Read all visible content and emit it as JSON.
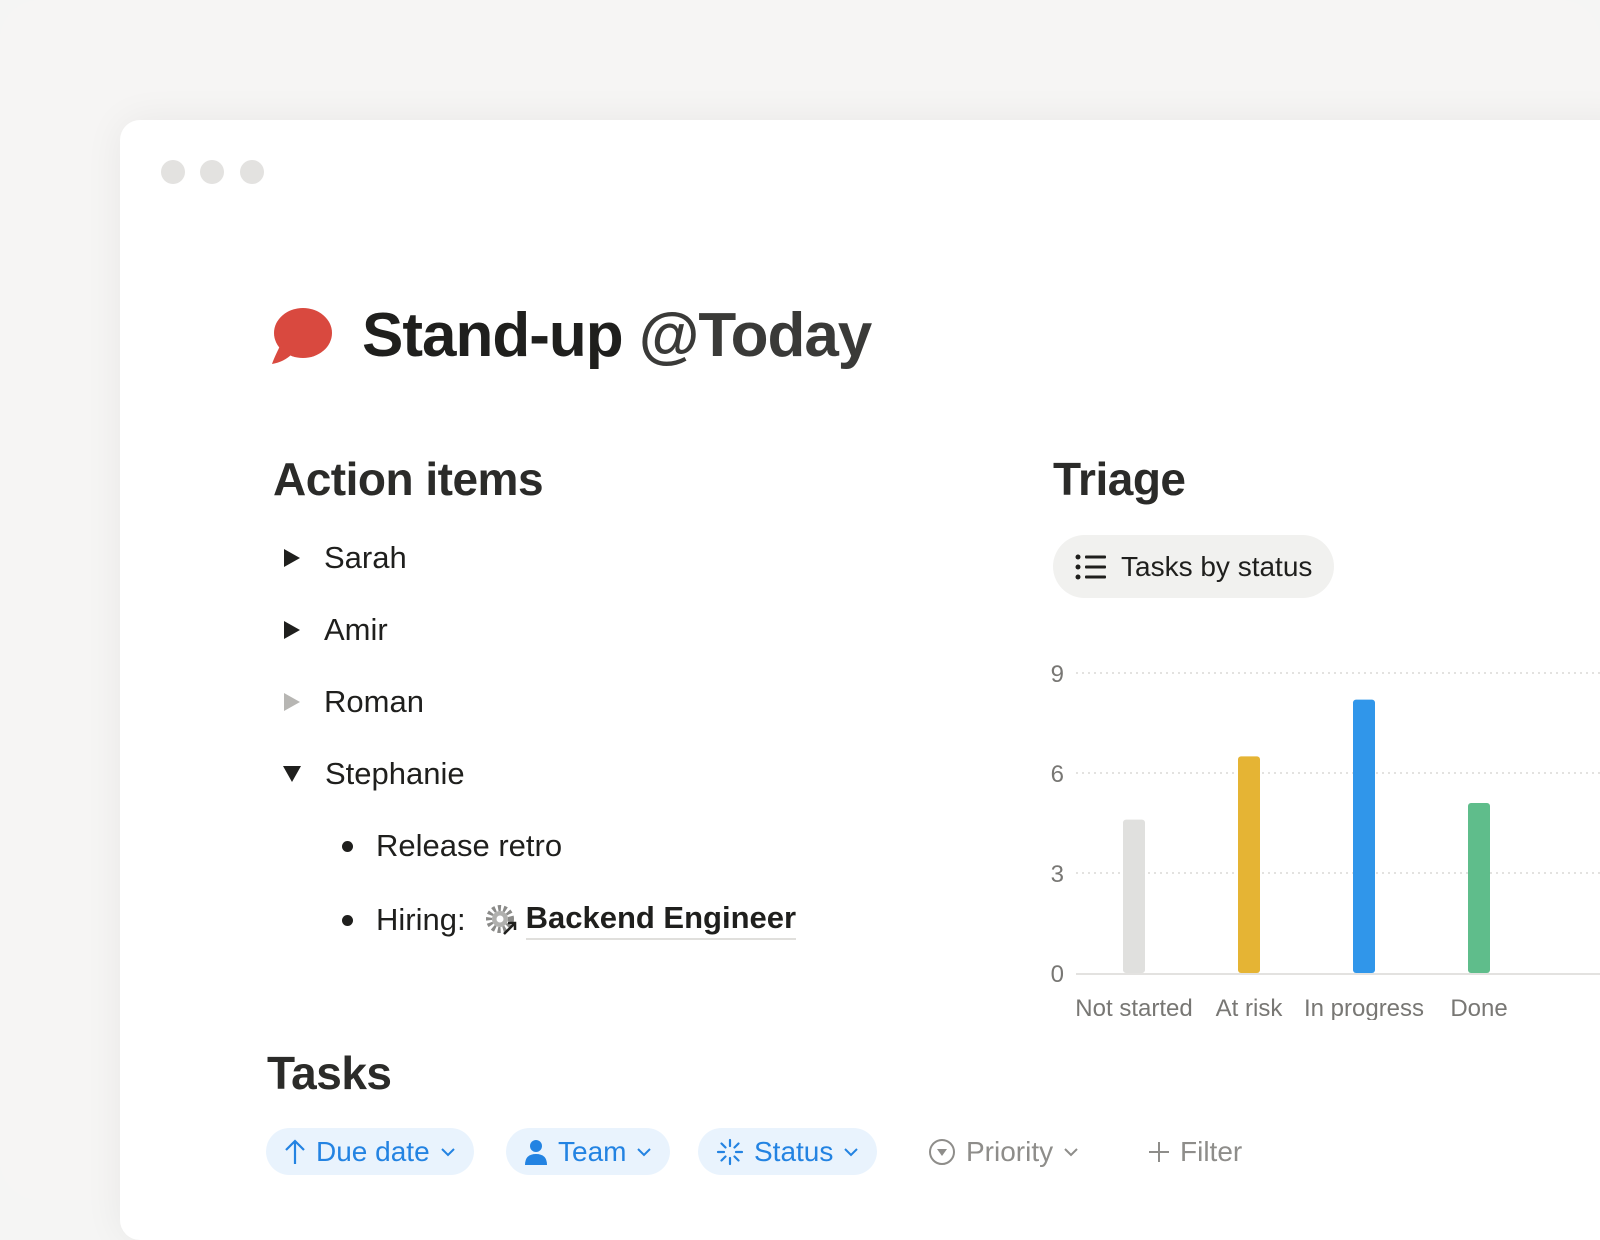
{
  "page": {
    "title": "Stand-up",
    "mention": "@Today",
    "icon": "speech-bubble-icon"
  },
  "action_items": {
    "heading": "Action items",
    "people": [
      {
        "name": "Sarah",
        "state": "collapsed"
      },
      {
        "name": "Amir",
        "state": "collapsed"
      },
      {
        "name": "Roman",
        "state": "collapsed-empty"
      },
      {
        "name": "Stephanie",
        "state": "expanded"
      }
    ],
    "stephanie_items": {
      "first": "Release retro",
      "second_label": "Hiring:",
      "second_link": "Backend Engineer"
    }
  },
  "triage": {
    "heading": "Triage",
    "view_label": "Tasks by status",
    "view_icon": "list-icon"
  },
  "chart_data": {
    "type": "bar",
    "categories": [
      "Not started",
      "At risk",
      "In progress",
      "Done"
    ],
    "values": [
      4.6,
      6.5,
      8.2,
      5.1
    ],
    "colors": [
      "#e0e0de",
      "#e5b434",
      "#3096ea",
      "#5fbd8b"
    ],
    "yticks": [
      0,
      3,
      6,
      9
    ],
    "ylim": [
      0,
      9
    ],
    "grid": true
  },
  "tasks": {
    "heading": "Tasks",
    "filters": [
      {
        "label": "Due date",
        "icon": "arrow-up-icon",
        "active": true
      },
      {
        "label": "Team",
        "icon": "person-icon",
        "active": true
      },
      {
        "label": "Status",
        "icon": "status-loader-icon",
        "active": true
      },
      {
        "label": "Priority",
        "icon": "circle-chevron-down-icon",
        "active": false
      }
    ],
    "add_filter_label": "Filter"
  }
}
